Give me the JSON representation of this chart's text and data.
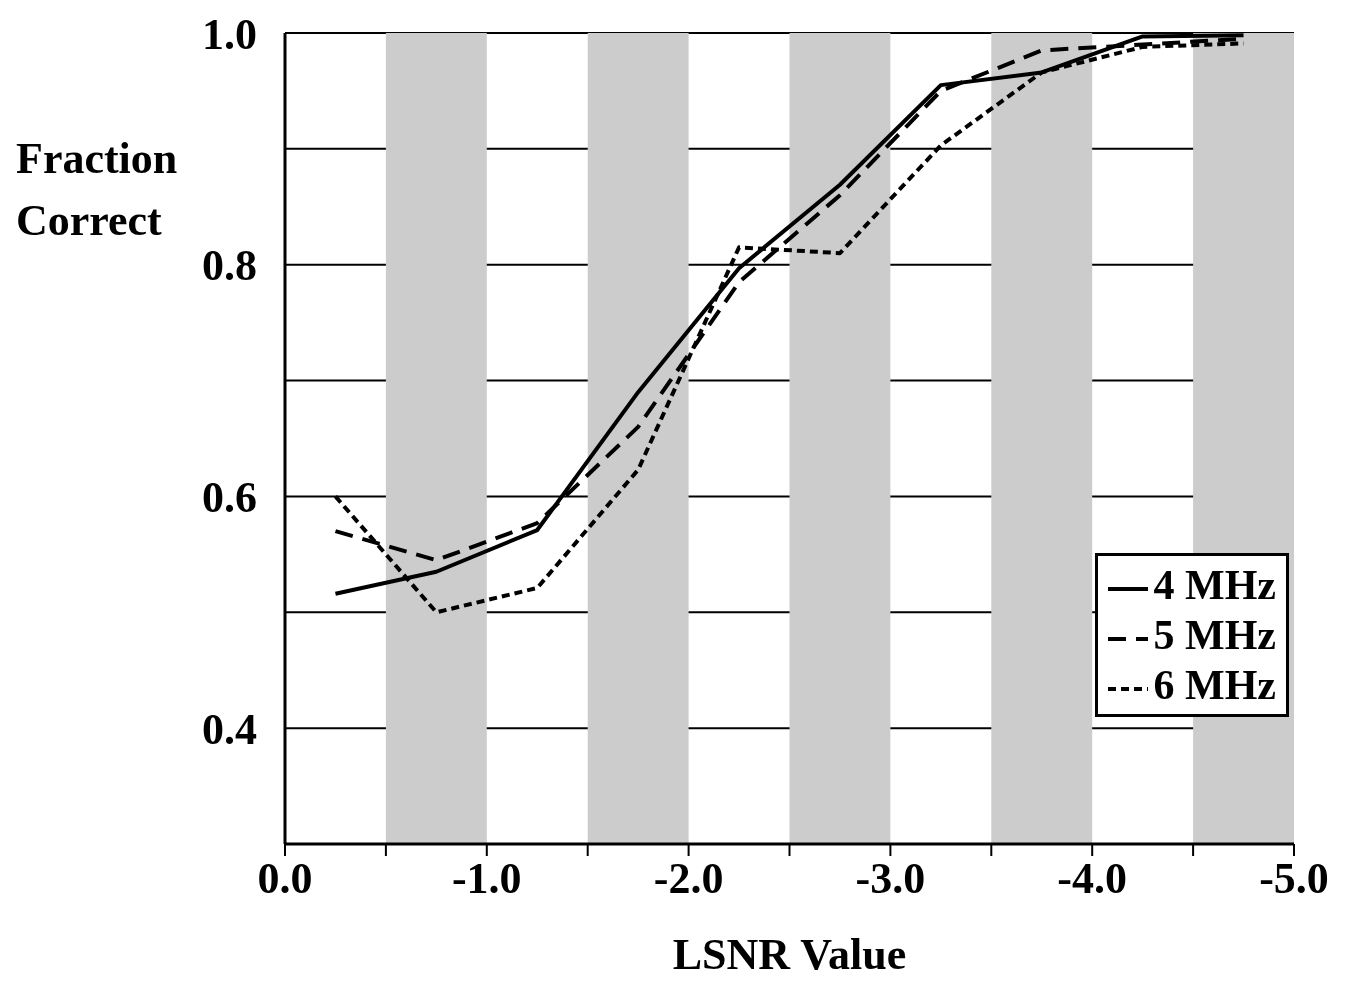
{
  "chart_data": {
    "type": "line",
    "xlabel": "LSNR Value",
    "ylabel": "Fraction Correct",
    "x": [
      -0.25,
      -0.75,
      -1.25,
      -1.75,
      -2.25,
      -2.75,
      -3.25,
      -3.75,
      -4.25,
      -4.75
    ],
    "series": [
      {
        "name": "4 MHz",
        "color": "#000000",
        "line_style": "solid",
        "values": [
          0.516,
          0.535,
          0.571,
          0.69,
          0.797,
          0.869,
          0.955,
          0.966,
          0.997,
          0.998
        ]
      },
      {
        "name": "5 MHz",
        "color": "#000000",
        "line_style": "dashed",
        "values": [
          0.57,
          0.545,
          0.577,
          0.66,
          0.785,
          0.86,
          0.95,
          0.985,
          0.99,
          0.995
        ]
      },
      {
        "name": "6 MHz",
        "color": "#000000",
        "line_style": "dotted",
        "values": [
          0.6,
          0.5,
          0.521,
          0.623,
          0.815,
          0.81,
          0.903,
          0.966,
          0.988,
          0.991
        ]
      }
    ],
    "xlim": [
      0,
      -5
    ],
    "xticks": [
      {
        "value": 0,
        "label": "0.0"
      },
      {
        "value": -0.5,
        "label": null
      },
      {
        "value": -1,
        "label": "-1.0"
      },
      {
        "value": -1.5,
        "label": null
      },
      {
        "value": -2,
        "label": "-2.0"
      },
      {
        "value": -2.5,
        "label": null
      },
      {
        "value": -3,
        "label": "-3.0"
      },
      {
        "value": -3.5,
        "label": null
      },
      {
        "value": -4,
        "label": "-4.0"
      },
      {
        "value": -4.5,
        "label": null
      },
      {
        "value": -5,
        "label": "-5.0"
      }
    ],
    "ylim": [
      0.3,
      1.0
    ],
    "yticks": [
      {
        "value": 0.3,
        "label": null
      },
      0.4,
      {
        "value": 0.5,
        "label": null
      },
      0.6,
      {
        "value": 0.7,
        "label": null
      },
      0.8,
      {
        "value": 0.9,
        "label": null
      },
      {
        "value": 1.0,
        "label": "1.0"
      }
    ],
    "bands": [
      {
        "axis": "x",
        "from": -0.5,
        "to": -1,
        "color": "#cccccc"
      },
      {
        "axis": "x",
        "from": -1.5,
        "to": -2,
        "color": "#cccccc"
      },
      {
        "axis": "x",
        "from": -2.5,
        "to": -3,
        "color": "#cccccc"
      },
      {
        "axis": "x",
        "from": -3.5,
        "to": -4,
        "color": "#cccccc"
      },
      {
        "axis": "x",
        "from": -4.5,
        "to": -5,
        "color": "#cccccc"
      }
    ],
    "grid": "y",
    "legend": "bottom right",
    "marker": "none"
  }
}
